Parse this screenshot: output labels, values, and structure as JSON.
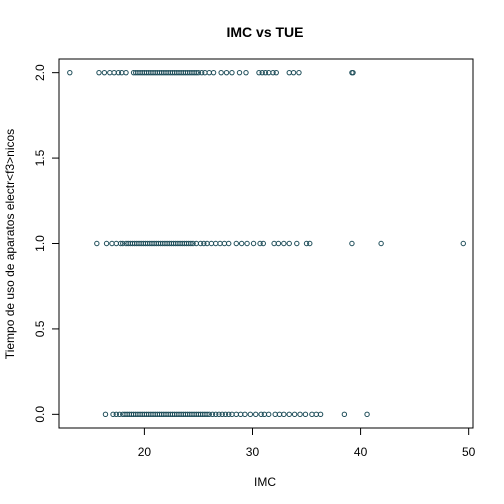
{
  "chart_data": {
    "type": "scatter",
    "title": "IMC vs TUE",
    "xlabel": "IMC",
    "ylabel": "Tiempo de uso de aparatos electr<f3>nicos",
    "xlim": [
      12.1,
      50.4
    ],
    "ylim": [
      -0.08,
      2.08
    ],
    "x_ticks": [
      20,
      30,
      40,
      50
    ],
    "y_ticks": [
      0.0,
      0.5,
      1.0,
      1.5,
      2.0
    ],
    "x_tick_labels": [
      "20",
      "30",
      "40",
      "50"
    ],
    "y_tick_labels": [
      "0.0",
      "0.5",
      "1.0",
      "1.5",
      "2.0"
    ],
    "grid": false,
    "marker": "open-circle",
    "point_color": "#1f4e5a",
    "series": [
      {
        "values_y": 2.0,
        "x": [
          13.1,
          15.8,
          16.3,
          16.8,
          17.2,
          17.6,
          17.9,
          18.3,
          19.0,
          19.2,
          19.4,
          19.6,
          19.8,
          20.0,
          20.2,
          20.4,
          20.6,
          20.8,
          21.0,
          21.2,
          21.4,
          21.6,
          21.8,
          22.0,
          22.2,
          22.4,
          22.6,
          22.8,
          23.0,
          23.2,
          23.4,
          23.6,
          23.8,
          24.0,
          24.2,
          24.4,
          24.6,
          24.8,
          25.0,
          25.3,
          25.6,
          26.0,
          26.4,
          27.1,
          27.6,
          28.1,
          28.8,
          29.4,
          30.6,
          30.9,
          31.2,
          31.5,
          31.9,
          32.2,
          33.4,
          33.8,
          34.3,
          39.2,
          39.3
        ]
      },
      {
        "values_y": 1.0,
        "x": [
          15.6,
          16.5,
          17.0,
          17.4,
          17.8,
          18.0,
          18.3,
          18.5,
          18.7,
          18.9,
          19.1,
          19.3,
          19.5,
          19.7,
          19.9,
          20.1,
          20.3,
          20.5,
          20.7,
          20.9,
          21.1,
          21.3,
          21.5,
          21.7,
          21.9,
          22.1,
          22.3,
          22.5,
          22.7,
          22.9,
          23.1,
          23.3,
          23.5,
          23.7,
          23.9,
          24.1,
          24.3,
          24.5,
          24.8,
          25.2,
          25.5,
          25.8,
          26.2,
          26.6,
          27.0,
          27.4,
          27.8,
          28.5,
          29.0,
          29.5,
          30.1,
          30.7,
          31.0,
          32.0,
          32.4,
          32.9,
          33.4,
          34.1,
          35.0,
          35.3,
          39.2,
          41.9,
          49.5
        ]
      },
      {
        "values_y": 0.0,
        "x": [
          16.4,
          17.1,
          17.4,
          17.7,
          18.0,
          18.2,
          18.4,
          18.6,
          18.8,
          19.0,
          19.2,
          19.4,
          19.6,
          19.8,
          20.0,
          20.2,
          20.4,
          20.6,
          20.8,
          21.0,
          21.2,
          21.4,
          21.6,
          21.8,
          22.0,
          22.2,
          22.4,
          22.6,
          22.8,
          23.0,
          23.2,
          23.4,
          23.6,
          23.8,
          24.0,
          24.2,
          24.4,
          24.6,
          24.8,
          25.0,
          25.2,
          25.4,
          25.6,
          25.8,
          26.0,
          26.3,
          26.6,
          26.9,
          27.2,
          27.5,
          27.8,
          28.1,
          28.5,
          28.9,
          29.3,
          29.8,
          30.3,
          30.8,
          31.1,
          31.5,
          32.1,
          32.5,
          32.9,
          33.4,
          33.9,
          34.4,
          34.9,
          35.5,
          35.9,
          36.3,
          38.5,
          40.6
        ]
      }
    ]
  }
}
